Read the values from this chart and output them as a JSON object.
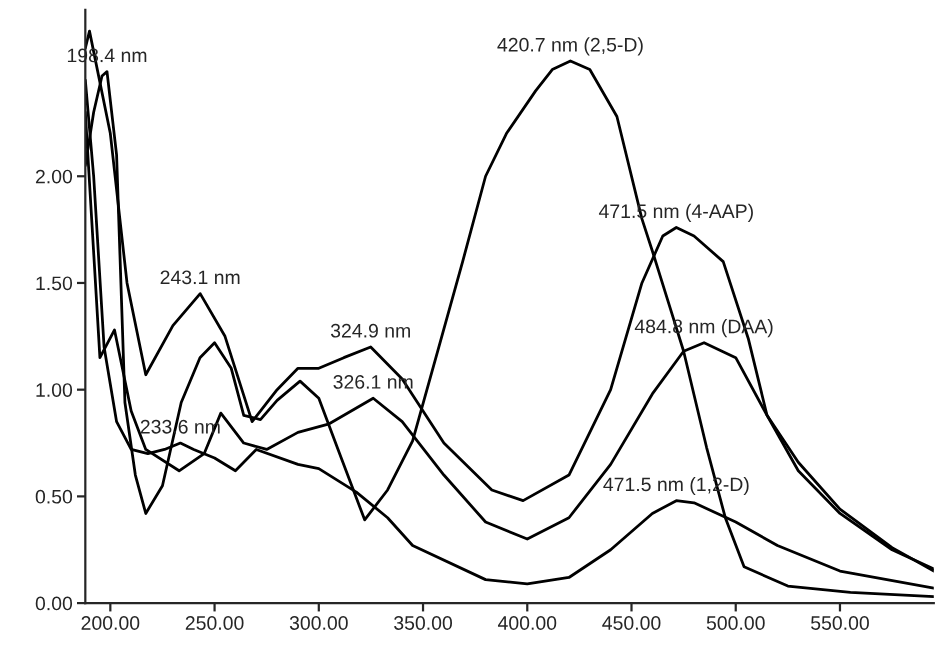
{
  "chart_data": {
    "type": "line",
    "xlim": [
      188,
      595
    ],
    "ylim": [
      0,
      2.78
    ],
    "xticks": [
      {
        "value": 200,
        "label": "200.00"
      },
      {
        "value": 250,
        "label": "250.00"
      },
      {
        "value": 300,
        "label": "300.00"
      },
      {
        "value": 350,
        "label": "350.00"
      },
      {
        "value": 400,
        "label": "400.00"
      },
      {
        "value": 450,
        "label": "450.00"
      },
      {
        "value": 500,
        "label": "500.00"
      },
      {
        "value": 550,
        "label": "550.00"
      }
    ],
    "yticks": [
      {
        "value": 0,
        "label": "0.00"
      },
      {
        "value": 0.5,
        "label": "0.50"
      },
      {
        "value": 1,
        "label": "1.00"
      },
      {
        "value": 1.5,
        "label": "1.50"
      },
      {
        "value": 2,
        "label": "2.00"
      }
    ],
    "grid": false,
    "marker": "none",
    "line_style": "solid",
    "series": [
      {
        "color": "#000000",
        "x": [
          188,
          192,
          196,
          198.4,
          203,
          207,
          212,
          217,
          225,
          234,
          243,
          250,
          258,
          264,
          272,
          280,
          291,
          300,
          310,
          322,
          333,
          345,
          357,
          369,
          380,
          390,
          404,
          412,
          420.7,
          430,
          443,
          455,
          460,
          468,
          475,
          486,
          495,
          504,
          525,
          555,
          595
        ],
        "values": [
          2.05,
          2.3,
          2.47,
          2.49,
          2.1,
          0.94,
          0.6,
          0.42,
          0.55,
          0.94,
          1.15,
          1.22,
          1.1,
          0.88,
          0.86,
          0.95,
          1.04,
          0.96,
          0.7,
          0.39,
          0.53,
          0.76,
          1.18,
          1.6,
          2.0,
          2.2,
          2.4,
          2.5,
          2.54,
          2.5,
          2.28,
          1.8,
          1.65,
          1.4,
          1.18,
          0.73,
          0.4,
          0.17,
          0.08,
          0.05,
          0.03
        ]
      },
      {
        "color": "#000000",
        "x": [
          188,
          190,
          200,
          208,
          217,
          230,
          243.1,
          255,
          268,
          280,
          290,
          300,
          312,
          324.9,
          340,
          360,
          383,
          398,
          420,
          440,
          455,
          465,
          471.5,
          480,
          494,
          506,
          515,
          530,
          550,
          575,
          595
        ],
        "values": [
          2.6,
          2.68,
          2.2,
          1.5,
          1.07,
          1.3,
          1.45,
          1.25,
          0.85,
          1.0,
          1.1,
          1.1,
          1.15,
          1.2,
          1.05,
          0.75,
          0.53,
          0.48,
          0.6,
          1.0,
          1.5,
          1.72,
          1.76,
          1.72,
          1.6,
          1.24,
          0.88,
          0.62,
          0.42,
          0.25,
          0.16
        ]
      },
      {
        "color": "#000000",
        "x": [
          188,
          195,
          202,
          210,
          217,
          233,
          245,
          253,
          264,
          275,
          290,
          305,
          326.1,
          340,
          360,
          380,
          400,
          420,
          440,
          460,
          475,
          484.8,
          500,
          515,
          530,
          550,
          575,
          595
        ],
        "values": [
          2.3,
          1.15,
          1.28,
          0.9,
          0.72,
          0.62,
          0.7,
          0.89,
          0.75,
          0.72,
          0.8,
          0.84,
          0.96,
          0.85,
          0.6,
          0.38,
          0.3,
          0.4,
          0.65,
          0.98,
          1.18,
          1.22,
          1.15,
          0.88,
          0.66,
          0.44,
          0.26,
          0.15
        ]
      },
      {
        "color": "#000000",
        "x": [
          188,
          192,
          197,
          203,
          210,
          218,
          226,
          233.6,
          240,
          250,
          260,
          270,
          290,
          300,
          318,
          333,
          345,
          380,
          400,
          420,
          440,
          460,
          471.5,
          480,
          500,
          520,
          550,
          595
        ],
        "values": [
          2.45,
          2.0,
          1.2,
          0.85,
          0.72,
          0.7,
          0.72,
          0.75,
          0.72,
          0.68,
          0.62,
          0.72,
          0.65,
          0.63,
          0.52,
          0.4,
          0.27,
          0.11,
          0.09,
          0.12,
          0.25,
          0.42,
          0.48,
          0.47,
          0.38,
          0.27,
          0.15,
          0.07
        ]
      }
    ],
    "annotations": [
      {
        "text": "198.4 nm",
        "x": 198.4,
        "y": 2.49
      },
      {
        "text": "243.1 nm",
        "x": 243.1,
        "y": 1.45
      },
      {
        "text": "233.6 nm",
        "x": 233.6,
        "y": 0.75
      },
      {
        "text": "324.9 nm",
        "x": 324.9,
        "y": 1.2
      },
      {
        "text": "326.1 nm",
        "x": 326.1,
        "y": 0.96
      },
      {
        "text": "420.7 nm (2,5-D)",
        "x": 420.7,
        "y": 2.54
      },
      {
        "text": "471.5 nm (4-AAP)",
        "x": 471.5,
        "y": 1.76
      },
      {
        "text": "484.8 nm (DAA)",
        "x": 484.8,
        "y": 1.22
      },
      {
        "text": "471.5 nm (1,2-D)",
        "x": 471.5,
        "y": 0.48
      }
    ]
  }
}
